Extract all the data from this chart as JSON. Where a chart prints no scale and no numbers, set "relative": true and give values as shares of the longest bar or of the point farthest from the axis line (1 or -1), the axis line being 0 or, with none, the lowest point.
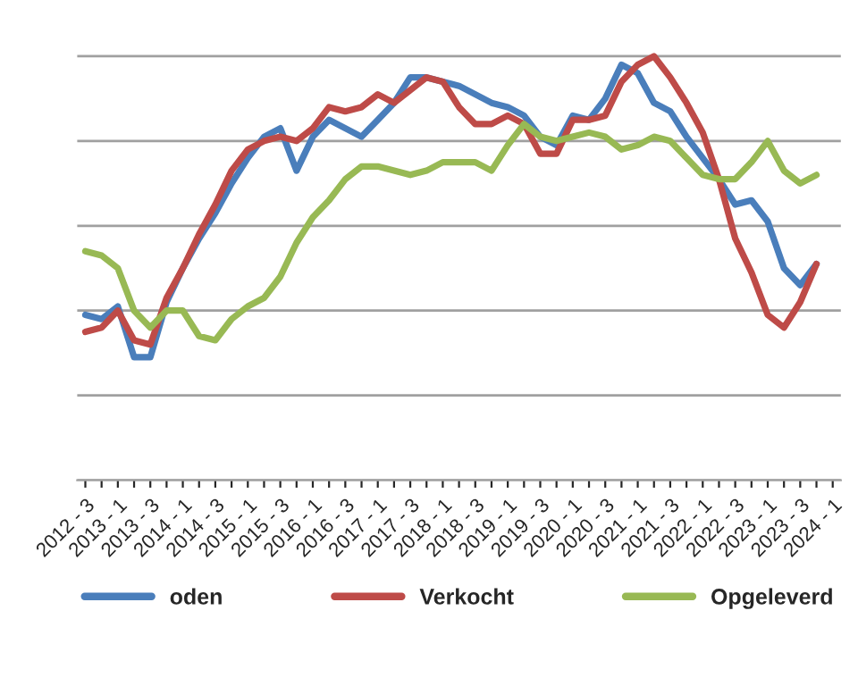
{
  "chart_data": {
    "type": "line",
    "relative": true,
    "grid": "y",
    "legend": "bottom",
    "marker": "none",
    "line_style": "solid",
    "categories": [
      "2012 - 3",
      null,
      "2013 - 1",
      null,
      "2013 - 3",
      null,
      "2014 - 1",
      null,
      "2014 - 3",
      null,
      "2015 - 1",
      null,
      "2015 - 3",
      null,
      "2016 - 1",
      null,
      "2016 - 3",
      null,
      "2017 - 1",
      null,
      "2017 - 3",
      null,
      "2018 - 1",
      null,
      "2018 - 3",
      null,
      "2019 - 1",
      null,
      "2019 - 3",
      null,
      "2020 - 1",
      null,
      "2020 - 3",
      null,
      "2021 - 1",
      null,
      "2021 - 3",
      null,
      "2022 - 1",
      null,
      "2022 - 3",
      null,
      "2023 - 1",
      null,
      "2023 - 3",
      null,
      "2024 - 1"
    ],
    "series": [
      {
        "name": "oden",
        "color": "#4a7ebb",
        "values": [
          0.39,
          0.38,
          0.41,
          0.29,
          0.29,
          0.42,
          0.5,
          0.57,
          0.63,
          0.7,
          0.76,
          0.81,
          0.83,
          0.73,
          0.81,
          0.85,
          0.83,
          0.81,
          0.85,
          0.89,
          0.95,
          0.95,
          0.94,
          0.93,
          0.91,
          0.89,
          0.88,
          0.86,
          0.81,
          0.79,
          0.86,
          0.85,
          0.9,
          0.98,
          0.96,
          0.89,
          0.87,
          0.81,
          0.76,
          0.71,
          0.65,
          0.66,
          0.61,
          0.5,
          0.46,
          0.51,
          null
        ]
      },
      {
        "name": "Verkocht",
        "color": "#be4b48",
        "values": [
          0.35,
          0.36,
          0.4,
          0.33,
          0.32,
          0.43,
          0.5,
          0.58,
          0.65,
          0.73,
          0.78,
          0.8,
          0.81,
          0.8,
          0.83,
          0.88,
          0.87,
          0.88,
          0.91,
          0.89,
          0.92,
          0.95,
          0.94,
          0.88,
          0.84,
          0.84,
          0.86,
          0.84,
          0.77,
          0.77,
          0.85,
          0.85,
          0.86,
          0.94,
          0.98,
          1.0,
          0.95,
          0.89,
          0.82,
          0.71,
          0.57,
          0.49,
          0.39,
          0.36,
          0.42,
          0.51,
          null
        ]
      },
      {
        "name": "Opgeleverd",
        "color": "#98b954",
        "values": [
          0.54,
          0.53,
          0.5,
          0.4,
          0.36,
          0.4,
          0.4,
          0.34,
          0.33,
          0.38,
          0.41,
          0.43,
          0.48,
          0.56,
          0.62,
          0.66,
          0.71,
          0.74,
          0.74,
          0.73,
          0.72,
          0.73,
          0.75,
          0.75,
          0.75,
          0.73,
          0.79,
          0.84,
          0.81,
          0.8,
          0.81,
          0.82,
          0.81,
          0.78,
          0.79,
          0.81,
          0.8,
          0.76,
          0.72,
          0.71,
          0.71,
          0.75,
          0.8,
          0.73,
          0.7,
          0.72,
          null
        ]
      }
    ]
  }
}
